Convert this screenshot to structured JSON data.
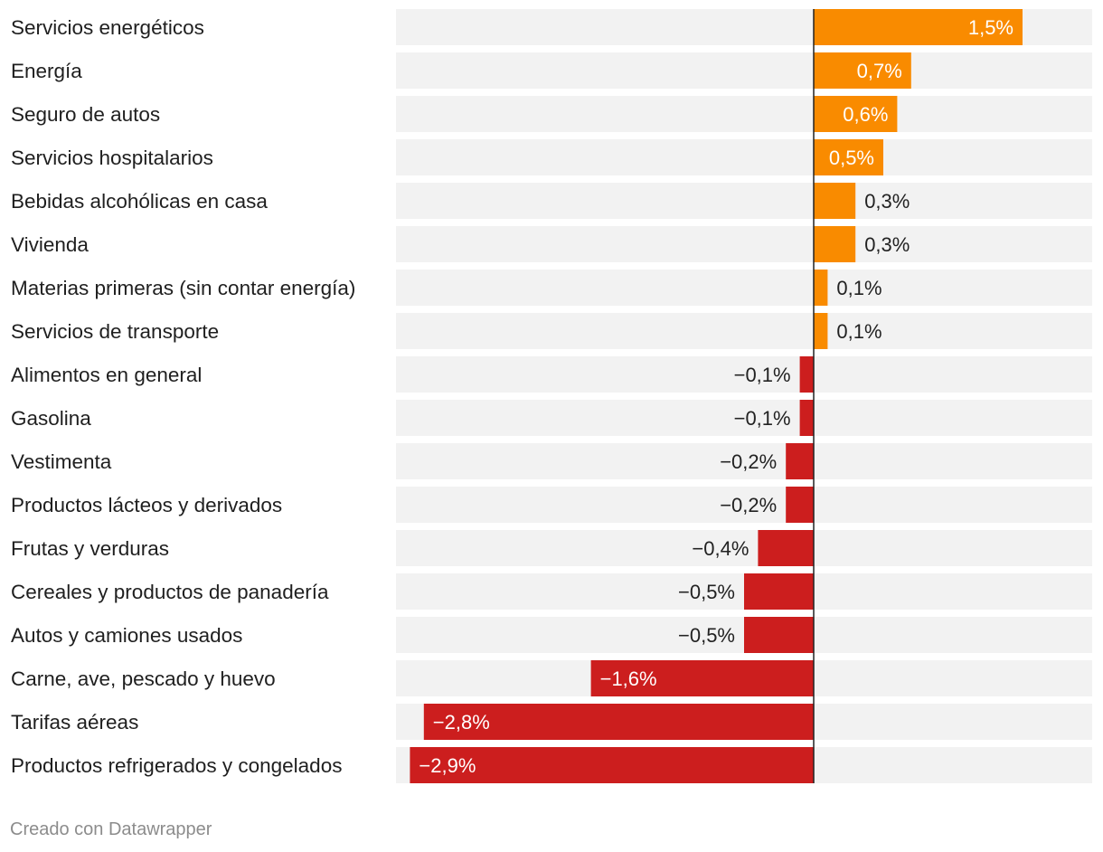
{
  "chart_data": {
    "type": "bar",
    "orientation": "horizontal",
    "categories": [
      "Servicios energéticos",
      "Energía",
      "Seguro de autos",
      "Servicios hospitalarios",
      "Bebidas alcohólicas en casa",
      "Vivienda",
      "Materias primeras (sin contar energía)",
      "Servicios de transporte",
      "Alimentos en general",
      "Gasolina",
      "Vestimenta",
      "Productos lácteos y derivados",
      "Frutas y verduras",
      "Cereales y productos de panadería",
      "Autos y camiones usados",
      "Carne, ave, pescado y huevo",
      "Tarifas aéreas",
      "Productos refrigerados y congelados"
    ],
    "values": [
      1.5,
      0.7,
      0.6,
      0.5,
      0.3,
      0.3,
      0.1,
      0.1,
      -0.1,
      -0.1,
      -0.2,
      -0.2,
      -0.4,
      -0.5,
      -0.5,
      -1.6,
      -2.8,
      -2.9
    ],
    "value_labels": [
      "1,5%",
      "0,7%",
      "0,6%",
      "0,5%",
      "0,3%",
      "0,3%",
      "0,1%",
      "0,1%",
      "−0,1%",
      "−0,1%",
      "−0,2%",
      "−0,2%",
      "−0,4%",
      "−0,5%",
      "−0,5%",
      "−1,6%",
      "−2,8%",
      "−2,9%"
    ],
    "xlim": [
      -3.0,
      2.0
    ],
    "colors": {
      "positive": "#f98b00",
      "negative": "#cc1e1e",
      "track": "#f2f2f2",
      "axis": "#222222",
      "label_inside": "#ffffff",
      "label_outside": "#222222"
    },
    "title": "",
    "xlabel": "",
    "ylabel": ""
  },
  "footer": {
    "credit": "Creado con Datawrapper"
  }
}
